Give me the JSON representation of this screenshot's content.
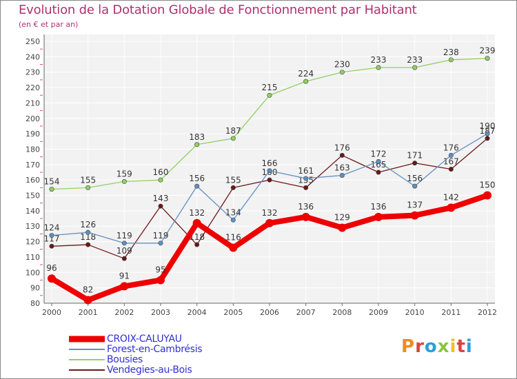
{
  "header": {
    "title": "Evolution de la Dotation Globale de Fonctionnement par Habitant",
    "subtitle": "(en € et par an)"
  },
  "logo": {
    "text": "Proxiti",
    "letters": [
      "P",
      "r",
      "o",
      "x",
      "i",
      "t",
      "i"
    ],
    "colors": [
      "#f08a1c",
      "#e04040",
      "#2a9fd8",
      "#8bc43f",
      "#f0c020",
      "#e04040",
      "#2a9fd8"
    ]
  },
  "chart_data": {
    "type": "line",
    "title": "Evolution de la Dotation Globale de Fonctionnement par Habitant",
    "subtitle": "(en € et par an)",
    "x": [
      "2000",
      "2001",
      "2002",
      "2003",
      "2004",
      "2005",
      "2006",
      "2007",
      "2008",
      "2009",
      "2010",
      "2011",
      "2012"
    ],
    "ylim": [
      80,
      250
    ],
    "yticks": [
      80,
      90,
      100,
      110,
      120,
      130,
      140,
      150,
      160,
      170,
      180,
      190,
      200,
      210,
      220,
      230,
      240,
      250
    ],
    "grid": true,
    "legend_position": "bottom-left",
    "series": [
      {
        "name": "Vendegies-au-Bois",
        "color": "#6b1818",
        "values": [
          117,
          118,
          109,
          143,
          118,
          155,
          160,
          155,
          176,
          165,
          171,
          167,
          187
        ],
        "labels": [
          "117",
          "118",
          "109",
          "143",
          "118",
          "155",
          "160",
          "155",
          "176",
          "165",
          "171",
          "167",
          "187"
        ]
      },
      {
        "name": "Bousies",
        "color": "#90d060",
        "values": [
          154,
          155,
          159,
          160,
          183,
          187,
          215,
          224,
          230,
          233,
          233,
          238,
          239
        ],
        "labels": [
          "154",
          "155",
          "159",
          "160",
          "183",
          "187",
          "215",
          "224",
          "230",
          "233",
          "233",
          "238",
          "239"
        ]
      },
      {
        "name": "Forest-en-Cambrésis",
        "color": "#6090c0",
        "values": [
          124,
          126,
          119,
          119,
          156,
          134,
          166,
          161,
          163,
          172,
          156,
          176,
          190
        ],
        "labels": [
          "124",
          "126",
          "119",
          "119",
          "156",
          "134",
          "166",
          "161",
          "163",
          "172",
          "156",
          "176",
          "190"
        ]
      },
      {
        "name": "CROIX-CALUYAU",
        "color": "#ee0000",
        "values": [
          96,
          82,
          91,
          95,
          132,
          116,
          132,
          136,
          129,
          136,
          137,
          142,
          150
        ],
        "labels": [
          "96",
          "82",
          "91",
          "95",
          "132",
          "116",
          "132",
          "136",
          "129",
          "136",
          "137",
          "142",
          "150"
        ]
      }
    ],
    "legend": [
      "CROIX-CALUYAU",
      "Forest-en-Cambrésis",
      "Bousies",
      "Vendegies-au-Bois"
    ]
  }
}
